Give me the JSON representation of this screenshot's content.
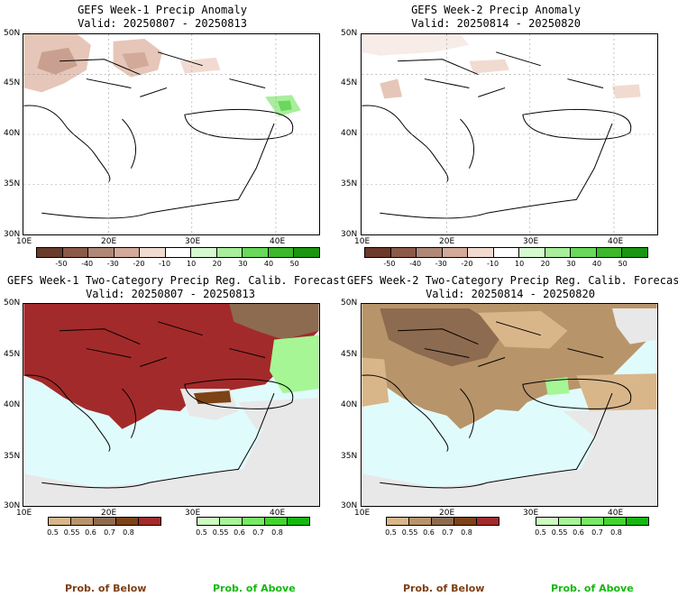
{
  "panels": [
    {
      "title": "GEFS Week-1 Precip Anomaly",
      "valid": "Valid: 20250807 - 20250813"
    },
    {
      "title": "GEFS Week-2 Precip Anomaly",
      "valid": "Valid: 20250814 - 20250820"
    },
    {
      "title": "GEFS Week-1 Two-Category Precip Reg. Calib. Forecast",
      "valid": "Valid: 20250807 - 20250813"
    },
    {
      "title": "GEFS Week-2 Two-Category Precip Reg. Calib. Forecast",
      "valid": "Valid: 20250814 - 20250820"
    }
  ],
  "axes": {
    "lat_labels": [
      "50N",
      "45N",
      "40N",
      "35N",
      "30N"
    ],
    "lon_labels": [
      "10E",
      "20E",
      "30E",
      "40E"
    ]
  },
  "anomaly_legend": {
    "labels": [
      "-50",
      "-40",
      "-30",
      "-20",
      "-10",
      "10",
      "20",
      "30",
      "40",
      "50"
    ],
    "colors": [
      "#6b3a2a",
      "#8b5a48",
      "#b08878",
      "#d3aa9a",
      "#f1dbd1",
      "#ffffff",
      "#d6fad0",
      "#a8ee9c",
      "#6ad85a",
      "#3db82b",
      "#1a9612"
    ]
  },
  "prob_legend": {
    "below_labels": [
      "0.5",
      "0.55",
      "0.6",
      "0.7",
      "0.8"
    ],
    "below_colors": [
      "#d8b68a",
      "#b8946a",
      "#8d6b50",
      "#7d4216",
      "#a32a2a"
    ],
    "above_labels": [
      "0.5",
      "0.55",
      "0.6",
      "0.7",
      "0.8"
    ],
    "above_colors": [
      "#cdfcc0",
      "#a6f695",
      "#77ea64",
      "#43d42f",
      "#14b80e"
    ]
  },
  "footer": {
    "below": "Prob. of Below",
    "above": "Prob. of Above"
  },
  "colors": {
    "sea": "#e0fbfc",
    "land_nodata": "#e8e8e8",
    "text_below": "#7d3f12",
    "text_above": "#14b80e"
  }
}
